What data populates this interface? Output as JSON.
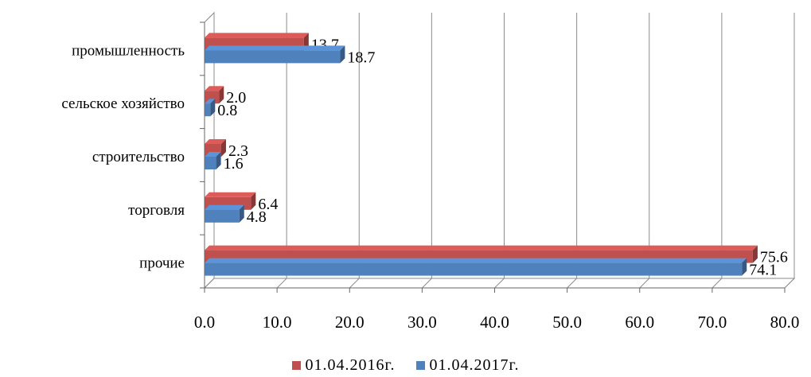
{
  "chart_data": {
    "type": "bar",
    "orientation": "horizontal",
    "style": "3d",
    "categories": [
      "промышленность",
      "сельское хозяйство",
      "строительство",
      "торговля",
      "прочие"
    ],
    "series": [
      {
        "name": "01.04.2016г.",
        "color": "#c0504d",
        "values": [
          13.7,
          2.0,
          2.3,
          6.4,
          75.6
        ]
      },
      {
        "name": "01.04.2017г.",
        "color": "#4f81bd",
        "values": [
          18.7,
          0.8,
          1.6,
          4.8,
          74.1
        ]
      }
    ],
    "value_labels": [
      [
        "13.7",
        "2.0",
        "2.3",
        "6.4",
        "75.6"
      ],
      [
        "18.7",
        "0.8",
        "1.6",
        "4.8",
        "74.1"
      ]
    ],
    "xlim": [
      0,
      80
    ],
    "x_ticks": [
      "0.0",
      "10.0",
      "20.0",
      "30.0",
      "40.0",
      "50.0",
      "60.0",
      "70.0",
      "80.0"
    ],
    "grid": true,
    "legend_position": "bottom"
  }
}
